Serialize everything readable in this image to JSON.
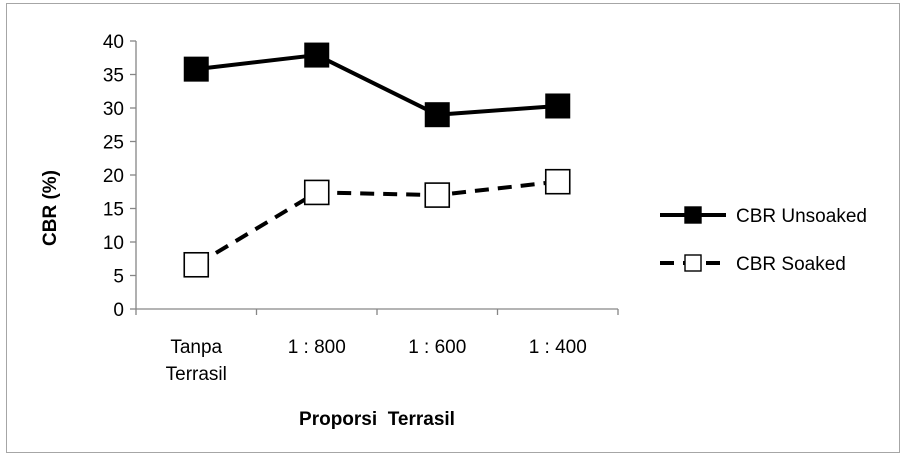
{
  "chart_data": {
    "type": "line",
    "categories": [
      [
        "Tanpa",
        "Terrasil"
      ],
      [
        "1 : 800"
      ],
      [
        "1 : 600"
      ],
      [
        "1 : 400"
      ]
    ],
    "series": [
      {
        "name": "CBR Unsoaked",
        "values": [
          35.8,
          37.9,
          29.0,
          30.3
        ],
        "line_style": "solid",
        "marker": "filled-square",
        "color": "#000000"
      },
      {
        "name": "CBR Soaked",
        "values": [
          6.6,
          17.4,
          17.0,
          19.0
        ],
        "line_style": "dashed",
        "marker": "open-square",
        "color": "#000000"
      }
    ],
    "xlabel": "Proporsi  Terrasil",
    "ylabel": "CBR (%)",
    "ylim": [
      0,
      40
    ],
    "yticks": [
      0,
      5,
      10,
      15,
      20,
      25,
      30,
      35,
      40
    ],
    "grid": false,
    "legend_position": "right"
  }
}
